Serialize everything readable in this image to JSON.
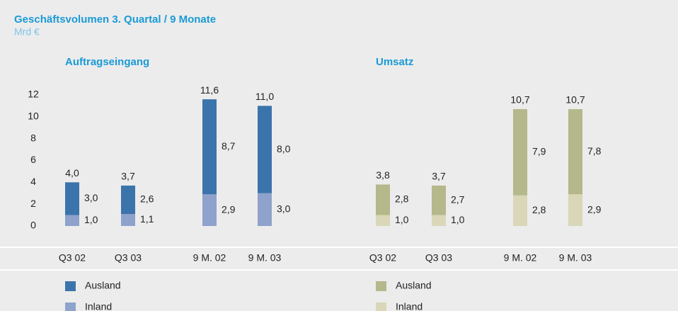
{
  "title": "Geschäftsvolumen 3. Quartal / 9 Monate",
  "subtitle": "Mrd €",
  "chart_data": [
    {
      "type": "bar",
      "stacked": true,
      "title": "Auftragseingang",
      "categories": [
        "Q3 02",
        "Q3 03",
        "9 M. 02",
        "9 M. 03"
      ],
      "series": [
        {
          "name": "Inland",
          "color": "#8fa2cc",
          "values": [
            1.0,
            1.1,
            2.9,
            3.0
          ],
          "value_labels": [
            "1,0",
            "1,1",
            "2,9",
            "3,0"
          ]
        },
        {
          "name": "Ausland",
          "color": "#3b74ab",
          "values": [
            3.0,
            2.6,
            8.7,
            8.0
          ],
          "value_labels": [
            "3,0",
            "2,6",
            "8,7",
            "8,0"
          ]
        }
      ],
      "totals": [
        4.0,
        3.7,
        11.6,
        11.0
      ],
      "total_labels": [
        "4,0",
        "3,7",
        "11,6",
        "11,0"
      ],
      "ylim": [
        0,
        12
      ],
      "yticks": [
        0,
        2,
        4,
        6,
        8,
        10,
        12
      ]
    },
    {
      "type": "bar",
      "stacked": true,
      "title": "Umsatz",
      "categories": [
        "Q3 02",
        "Q3 03",
        "9 M. 02",
        "9 M. 03"
      ],
      "series": [
        {
          "name": "Inland",
          "color": "#d9d7b8",
          "values": [
            1.0,
            1.0,
            2.8,
            2.9
          ],
          "value_labels": [
            "1,0",
            "1,0",
            "2,8",
            "2,9"
          ]
        },
        {
          "name": "Ausland",
          "color": "#b5b88a",
          "values": [
            2.8,
            2.7,
            7.9,
            7.8
          ],
          "value_labels": [
            "2,8",
            "2,7",
            "7,9",
            "7,8"
          ]
        }
      ],
      "totals": [
        3.8,
        3.7,
        10.7,
        10.7
      ],
      "total_labels": [
        "3,8",
        "3,7",
        "10,7",
        "10,7"
      ],
      "ylim": [
        0,
        12
      ]
    }
  ]
}
